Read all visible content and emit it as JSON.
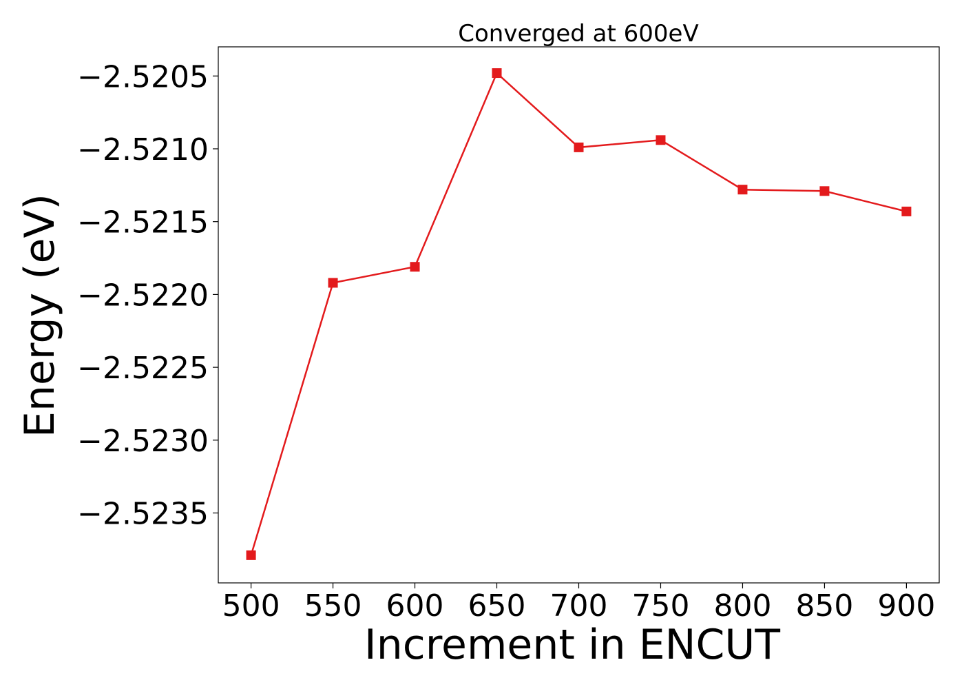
{
  "chart_data": {
    "type": "line",
    "title": "Converged at 600eV",
    "xlabel": "Increment in ENCUT",
    "ylabel": "Energy (eV)",
    "x": [
      500,
      550,
      600,
      650,
      700,
      750,
      800,
      850,
      900
    ],
    "series": [
      {
        "values": [
          -2.52379,
          -2.52192,
          -2.52181,
          -2.52048,
          -2.52099,
          -2.52094,
          -2.52128,
          -2.52129,
          -2.52143
        ],
        "color": "#e31a1c",
        "marker": "square"
      }
    ],
    "x_ticks": [
      500,
      550,
      600,
      650,
      700,
      750,
      800,
      850,
      900
    ],
    "x_tick_labels": [
      "500",
      "550",
      "600",
      "650",
      "700",
      "750",
      "800",
      "850",
      "900"
    ],
    "y_ticks": [
      -2.5205,
      -2.521,
      -2.5215,
      -2.522,
      -2.5225,
      -2.523,
      -2.5235
    ],
    "y_tick_labels": [
      "−2.5205",
      "−2.5210",
      "−2.5215",
      "−2.5220",
      "−2.5225",
      "−2.5230",
      "−2.5235"
    ],
    "xlim": [
      480,
      920
    ],
    "ylim": [
      -2.52398,
      -2.5203
    ],
    "grid": false,
    "legend": "none"
  }
}
